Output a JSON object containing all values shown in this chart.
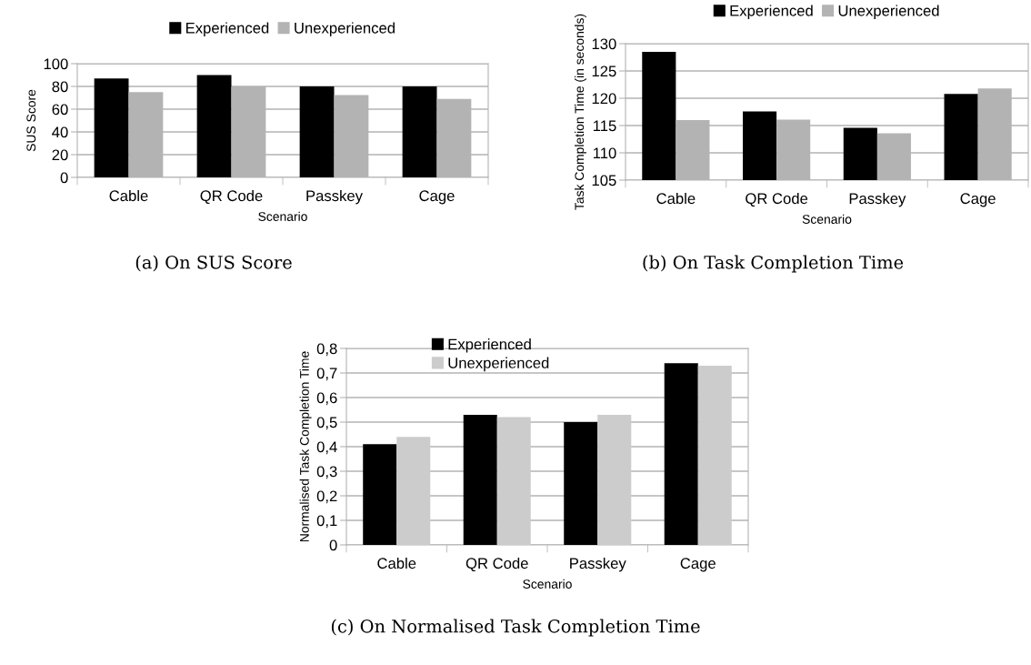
{
  "chart_data": [
    {
      "type": "bar",
      "xlabel": "Scenario",
      "ylabel": "SUS Score",
      "categories": [
        "Cable",
        "QR Code",
        "Passkey",
        "Cage"
      ],
      "series": [
        {
          "name": "Experienced",
          "color": "#000000",
          "values": [
            87,
            90,
            80,
            80
          ]
        },
        {
          "name": "Unexperienced",
          "color": "#b3b3b3",
          "values": [
            75,
            80,
            72.5,
            69
          ]
        }
      ],
      "ylim": [
        0,
        100
      ],
      "yticks": [
        0,
        20,
        40,
        60,
        80,
        100
      ],
      "grid": "y",
      "legend": "top",
      "annotations": [
        "(a) On SUS Score"
      ]
    },
    {
      "type": "bar",
      "xlabel": "Scenario",
      "ylabel": "Task Completion Time (in seconds)",
      "categories": [
        "Cable",
        "QR Code",
        "Passkey",
        "Cage"
      ],
      "series": [
        {
          "name": "Experienced",
          "color": "#000000",
          "values": [
            128.5,
            117.6,
            114.6,
            120.8
          ]
        },
        {
          "name": "Unexperienced",
          "color": "#b3b3b3",
          "values": [
            116,
            116.1,
            113.6,
            121.8
          ]
        }
      ],
      "ylim": [
        105,
        130
      ],
      "yticks": [
        105,
        110,
        115,
        120,
        125,
        130
      ],
      "grid": "y",
      "legend": "top",
      "annotations": [
        "(b) On Task Completion Time"
      ]
    },
    {
      "type": "bar",
      "xlabel": "Scenario",
      "ylabel": "Normalised Task Completion Time",
      "categories": [
        "Cable",
        "QR Code",
        "Passkey",
        "Cage"
      ],
      "series": [
        {
          "name": "Experienced",
          "color": "#000000",
          "values": [
            0.41,
            0.53,
            0.5,
            0.74
          ]
        },
        {
          "name": "Unexperienced",
          "color": "#cccccc",
          "values": [
            0.44,
            0.52,
            0.53,
            0.73
          ]
        }
      ],
      "ylim": [
        0,
        0.8
      ],
      "yticks": [
        {
          "value": 0,
          "label": "0"
        },
        {
          "value": 0.1,
          "label": "0,1"
        },
        {
          "value": 0.2,
          "label": "0,2"
        },
        {
          "value": 0.3,
          "label": "0,3"
        },
        {
          "value": 0.4,
          "label": "0,4"
        },
        {
          "value": 0.5,
          "label": "0,5"
        },
        {
          "value": 0.6,
          "label": "0,6"
        },
        {
          "value": 0.7,
          "label": "0,7"
        },
        {
          "value": 0.8,
          "label": "0,8"
        }
      ],
      "grid": "y",
      "legend": "top left",
      "annotations": [
        "(c) On Normalised Task Completion Time"
      ]
    }
  ]
}
